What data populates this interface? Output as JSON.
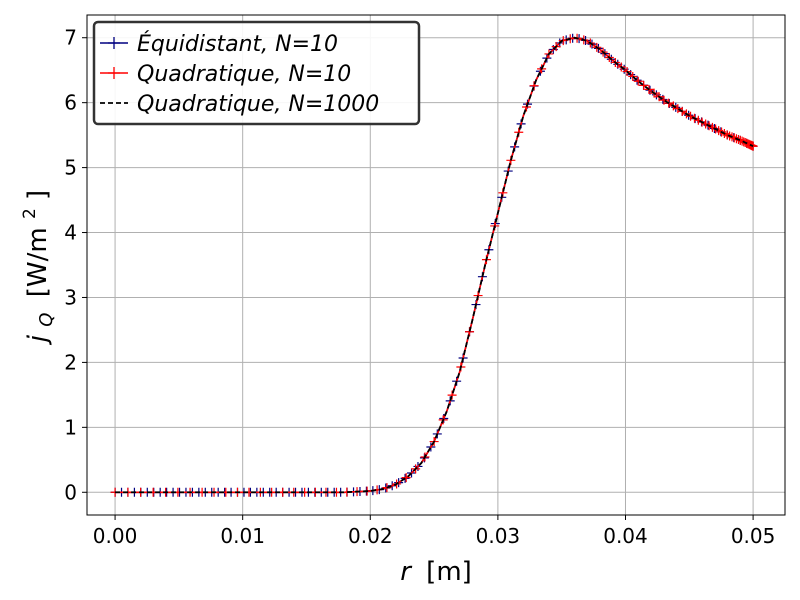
{
  "chart_data": {
    "type": "line",
    "title": "",
    "xlabel_var": "r",
    "xlabel_unit": "[m]",
    "ylabel_var": "j",
    "ylabel_sub": "Q",
    "ylabel_unit_pre": "[W/m",
    "ylabel_unit_sup": "2",
    "ylabel_unit_post": "]",
    "xlim": [
      -0.0022,
      0.0525
    ],
    "ylim": [
      -0.35,
      7.35
    ],
    "grid": true,
    "legend_position": "top-left",
    "x_ticks": [
      0.0,
      0.01,
      0.02,
      0.03,
      0.04,
      0.05
    ],
    "x_tick_labels": [
      "0.00",
      "0.01",
      "0.02",
      "0.03",
      "0.04",
      "0.05"
    ],
    "y_ticks": [
      0,
      1,
      2,
      3,
      4,
      5,
      6,
      7
    ],
    "y_tick_labels": [
      "0",
      "1",
      "2",
      "3",
      "4",
      "5",
      "6",
      "7"
    ],
    "curve": {
      "x": [
        0.0,
        0.018,
        0.02,
        0.021,
        0.022,
        0.023,
        0.024,
        0.025,
        0.026,
        0.027,
        0.028,
        0.029,
        0.03,
        0.031,
        0.032,
        0.033,
        0.034,
        0.035,
        0.036,
        0.0365,
        0.037,
        0.038,
        0.039,
        0.04,
        0.041,
        0.042,
        0.043,
        0.044,
        0.045,
        0.046,
        0.047,
        0.048,
        0.049,
        0.05
      ],
      "y": [
        0.0,
        0.0,
        0.02,
        0.05,
        0.12,
        0.25,
        0.45,
        0.78,
        1.25,
        1.85,
        2.65,
        3.5,
        4.3,
        5.1,
        5.8,
        6.35,
        6.75,
        6.95,
        7.0,
        6.98,
        6.95,
        6.82,
        6.65,
        6.5,
        6.33,
        6.18,
        6.04,
        5.92,
        5.8,
        5.7,
        5.6,
        5.5,
        5.42,
        5.33
      ]
    },
    "series": [
      {
        "name": "Équidistant, N=10",
        "color": "#000080",
        "style": "solid-plus-markers",
        "n_markers": 100
      },
      {
        "name": "Quadratique, N=10",
        "color": "#ff0000",
        "style": "solid-plus-markers",
        "n_markers": 100
      },
      {
        "name": "Quadratique, N=1000",
        "color": "#000000",
        "style": "dashed"
      }
    ],
    "colors": {
      "grid": "#b0b0b0",
      "legend_border": "#333333",
      "axes": "#000000"
    }
  }
}
